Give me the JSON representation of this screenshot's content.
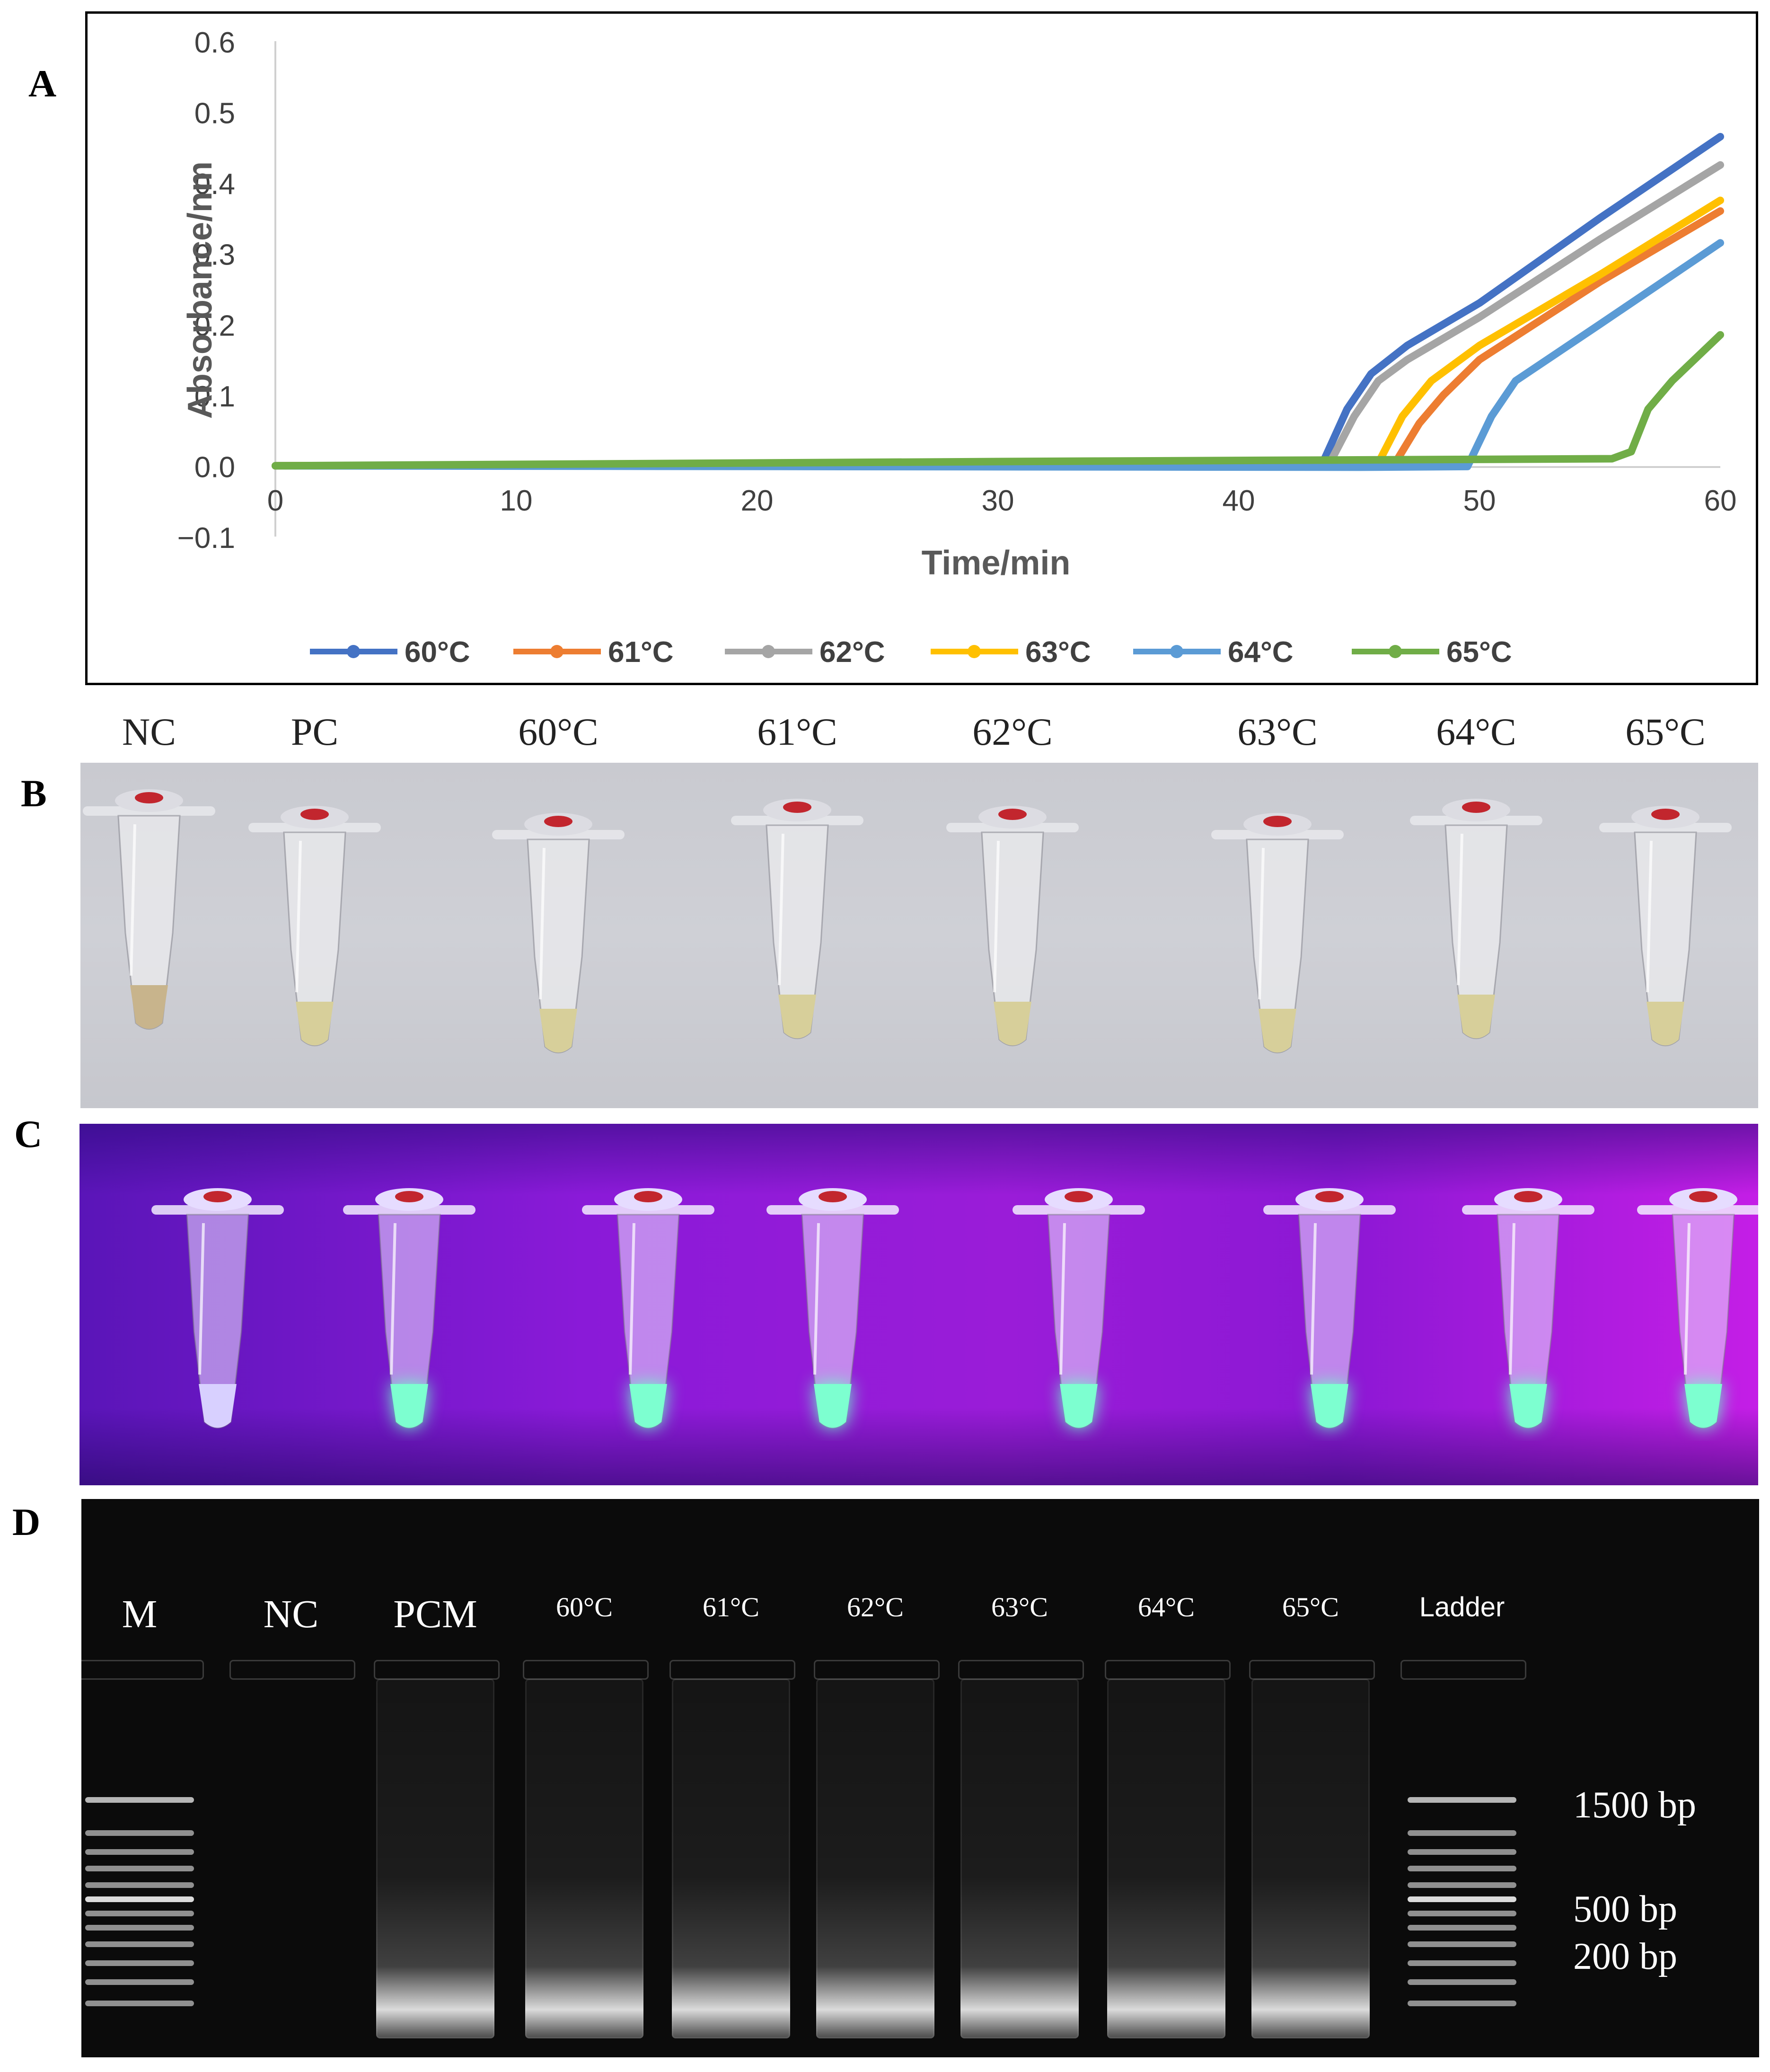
{
  "panel_labels": {
    "a": "A",
    "b": "B",
    "c": "C",
    "d": "D"
  },
  "chart_data": {
    "type": "line",
    "title": "",
    "xlabel": "Time/min",
    "ylabel": "Absorbance/nm",
    "xlim": [
      0,
      60
    ],
    "ylim": [
      -0.1,
      0.6
    ],
    "x_ticks": [
      "0",
      "10",
      "20",
      "30",
      "40",
      "50",
      "60"
    ],
    "y_ticks": [
      "0.6",
      "0.5",
      "0.4",
      "0.3",
      "0.2",
      "0.1",
      "0.0",
      "−0.1"
    ],
    "legend_position": "bottom",
    "series": [
      {
        "name": "60°C",
        "color": "#4472c4",
        "x": [
          0,
          40,
          43.5,
          44.5,
          45.5,
          47,
          50,
          55,
          60
        ],
        "y": [
          0,
          0.004,
          0.005,
          0.08,
          0.13,
          0.17,
          0.23,
          0.35,
          0.465
        ]
      },
      {
        "name": "61°C",
        "color": "#ed7d31",
        "x": [
          0,
          44,
          46.5,
          47.5,
          48.5,
          50,
          55,
          60
        ],
        "y": [
          0,
          0.003,
          0.004,
          0.06,
          0.1,
          0.15,
          0.26,
          0.36
        ]
      },
      {
        "name": "62°C",
        "color": "#a5a5a5",
        "x": [
          0,
          40,
          43.8,
          44.8,
          45.8,
          47,
          50,
          55,
          60
        ],
        "y": [
          0,
          0.004,
          0.005,
          0.07,
          0.12,
          0.15,
          0.21,
          0.32,
          0.425
        ]
      },
      {
        "name": "63°C",
        "color": "#ffc000",
        "x": [
          0,
          43,
          45.8,
          46.8,
          48,
          50,
          55,
          60
        ],
        "y": [
          0,
          0.003,
          0.004,
          0.07,
          0.12,
          0.17,
          0.27,
          0.375
        ]
      },
      {
        "name": "64°C",
        "color": "#5b9bd5",
        "x": [
          0,
          45,
          49.5,
          50.5,
          51.5,
          55,
          60
        ],
        "y": [
          0,
          -0.002,
          -0.001,
          0.07,
          0.12,
          0.2,
          0.315
        ]
      },
      {
        "name": "65°C",
        "color": "#70ad47",
        "x": [
          0,
          30,
          55.5,
          56.3,
          57,
          58,
          60
        ],
        "y": [
          0,
          0.006,
          0.01,
          0.02,
          0.08,
          0.12,
          0.185
        ]
      }
    ]
  },
  "panel_b": {
    "tube_labels": [
      "NC",
      "PC",
      "60°C",
      "61°C",
      "62°C",
      "63°C",
      "64°C",
      "65°C"
    ]
  },
  "panel_d": {
    "lane_labels": [
      "M",
      "NC",
      "PCM",
      "60°C",
      "61°C",
      "62°C",
      "63°C",
      "64°C",
      "65°C",
      "Ladder"
    ],
    "size_markers": [
      "1500 bp",
      "500 bp",
      "200 bp"
    ]
  }
}
